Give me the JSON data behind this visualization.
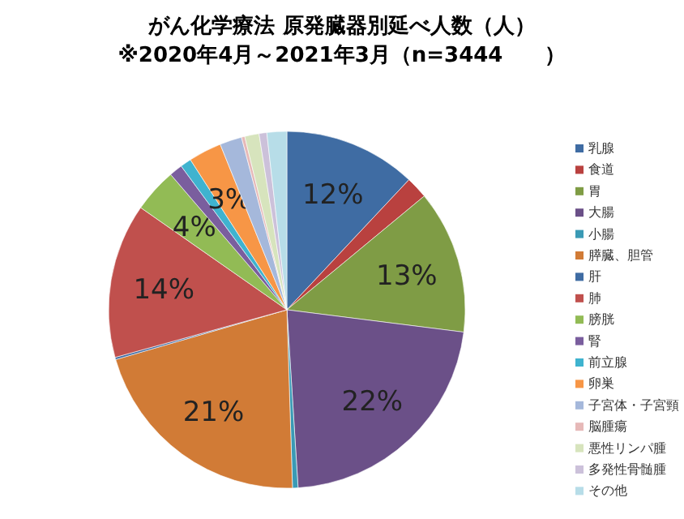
{
  "chart_data": {
    "type": "pie",
    "title": "がん化学療法 原発臓器別延べ人数（人）",
    "subtitle": "※2020年4月～2021年3月（n=3444　　）",
    "categories": [
      "乳腺",
      "食道",
      "胃",
      "大腸",
      "小腸",
      "膵臓、胆管",
      "肝",
      "肺",
      "膀胱",
      "腎",
      "前立腺",
      "卵巣",
      "子宮体・子宮頸",
      "脳腫瘍",
      "悪性リンパ腫",
      "多発性骨髄腫",
      "その他"
    ],
    "values": [
      12,
      2,
      13,
      22,
      0.5,
      21,
      0.2,
      14,
      4,
      1.2,
      1,
      3,
      2,
      0.3,
      1.3,
      0.7,
      1.8
    ],
    "colors": [
      "#3f6ca3",
      "#b9413f",
      "#7f9c45",
      "#6b5088",
      "#3a9ab5",
      "#d17b36",
      "#3f6ca3",
      "#c0504d",
      "#92bb55",
      "#7a5e9e",
      "#3fb3cf",
      "#f79646",
      "#a5b8db",
      "#e6b9b8",
      "#d7e4bd",
      "#ccc1da",
      "#b7dde8"
    ],
    "value_labels": [
      "12%",
      null,
      "13%",
      "22%",
      null,
      "21%",
      null,
      "14%",
      "4%",
      null,
      null,
      "3%",
      null,
      null,
      null,
      null,
      null
    ],
    "legend": "right"
  }
}
